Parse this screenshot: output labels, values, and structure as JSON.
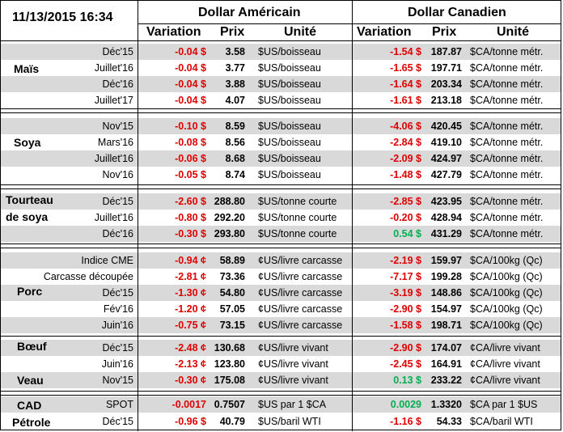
{
  "header": {
    "timestamp": "11/13/2015 16:34",
    "usd_title": "Dollar Américain",
    "cad_title": "Dollar Canadien",
    "col_variation": "Variation",
    "col_prix": "Prix",
    "col_unite": "Unité"
  },
  "groups": [
    {
      "label": "Maïs"
    },
    {
      "label": "Soya"
    },
    {
      "label": "Tourteau de soya"
    },
    {
      "label": "Porc"
    },
    {
      "label": "Bœuf"
    },
    {
      "label": "Veau"
    },
    {
      "label": "CAD"
    },
    {
      "label": "Pétrole"
    }
  ],
  "rows": [
    {
      "cat": "Déc'15",
      "uv": "-0.04 $",
      "up": "3.58",
      "uu": "$US/boisseau",
      "cv": "-1.54 $",
      "cp": "187.87",
      "cu": "$CA/tonne métr.",
      "cv_sign": "neg"
    },
    {
      "cat": "Juillet'16",
      "uv": "-0.04 $",
      "up": "3.77",
      "uu": "$US/boisseau",
      "cv": "-1.65 $",
      "cp": "197.71",
      "cu": "$CA/tonne métr.",
      "cv_sign": "neg"
    },
    {
      "cat": "Déc'16",
      "uv": "-0.04 $",
      "up": "3.88",
      "uu": "$US/boisseau",
      "cv": "-1.64 $",
      "cp": "203.34",
      "cu": "$CA/tonne métr.",
      "cv_sign": "neg"
    },
    {
      "cat": "Juillet'17",
      "uv": "-0.04 $",
      "up": "4.07",
      "uu": "$US/boisseau",
      "cv": "-1.61 $",
      "cp": "213.18",
      "cu": "$CA/tonne métr.",
      "cv_sign": "neg"
    },
    {
      "cat": "Nov'15",
      "uv": "-0.10 $",
      "up": "8.59",
      "uu": "$US/boisseau",
      "cv": "-4.06 $",
      "cp": "420.45",
      "cu": "$CA/tonne métr.",
      "cv_sign": "neg"
    },
    {
      "cat": "Mars'16",
      "uv": "-0.08 $",
      "up": "8.56",
      "uu": "$US/boisseau",
      "cv": "-2.84 $",
      "cp": "419.10",
      "cu": "$CA/tonne métr.",
      "cv_sign": "neg"
    },
    {
      "cat": "Juillet'16",
      "uv": "-0.06 $",
      "up": "8.68",
      "uu": "$US/boisseau",
      "cv": "-2.09 $",
      "cp": "424.97",
      "cu": "$CA/tonne métr.",
      "cv_sign": "neg"
    },
    {
      "cat": "Nov'16",
      "uv": "-0.05 $",
      "up": "8.74",
      "uu": "$US/boisseau",
      "cv": "-1.48 $",
      "cp": "427.79",
      "cu": "$CA/tonne métr.",
      "cv_sign": "neg"
    },
    {
      "cat": "Déc'15",
      "uv": "-2.60 $",
      "up": "288.80",
      "uu": "$US/tonne courte",
      "cv": "-2.85 $",
      "cp": "423.95",
      "cu": "$CA/tonne métr.",
      "cv_sign": "neg"
    },
    {
      "cat": "Juillet'16",
      "uv": "-0.80 $",
      "up": "292.20",
      "uu": "$US/tonne courte",
      "cv": "-0.20 $",
      "cp": "428.94",
      "cu": "$CA/tonne métr.",
      "cv_sign": "neg"
    },
    {
      "cat": "Déc'16",
      "uv": "-0.30 $",
      "up": "293.80",
      "uu": "$US/tonne courte",
      "cv": "0.54 $",
      "cp": "431.29",
      "cu": "$CA/tonne métr.",
      "cv_sign": "pos"
    },
    {
      "cat": "Indice CME",
      "uv": "-0.94 ¢",
      "up": "58.89",
      "uu": "¢US/livre carcasse",
      "cv": "-2.19 $",
      "cp": "159.97",
      "cu": "$CA/100kg (Qc)",
      "cv_sign": "neg"
    },
    {
      "cat": "Carcasse découpée",
      "uv": "-2.81 ¢",
      "up": "73.36",
      "uu": "¢US/livre carcasse",
      "cv": "-7.17 $",
      "cp": "199.28",
      "cu": "$CA/100kg (Qc)",
      "cv_sign": "neg"
    },
    {
      "cat": "Déc'15",
      "uv": "-1.30 ¢",
      "up": "54.80",
      "uu": "¢US/livre carcasse",
      "cv": "-3.19 $",
      "cp": "148.86",
      "cu": "$CA/100kg (Qc)",
      "cv_sign": "neg"
    },
    {
      "cat": "Fév'16",
      "uv": "-1.20 ¢",
      "up": "57.05",
      "uu": "¢US/livre carcasse",
      "cv": "-2.90 $",
      "cp": "154.97",
      "cu": "$CA/100kg (Qc)",
      "cv_sign": "neg"
    },
    {
      "cat": "Juin'16",
      "uv": "-0.75 ¢",
      "up": "73.15",
      "uu": "¢US/livre carcasse",
      "cv": "-1.58 $",
      "cp": "198.71",
      "cu": "$CA/100kg (Qc)",
      "cv_sign": "neg"
    },
    {
      "cat": "Déc'15",
      "uv": "-2.48 ¢",
      "up": "130.68",
      "uu": "¢US/livre vivant",
      "cv": "-2.90 $",
      "cp": "174.07",
      "cu": "¢CA/livre vivant",
      "cv_sign": "neg"
    },
    {
      "cat": "Juin'16",
      "uv": "-2.13 ¢",
      "up": "123.80",
      "uu": "¢US/livre vivant",
      "cv": "-2.45 $",
      "cp": "164.91",
      "cu": "¢CA/livre vivant",
      "cv_sign": "neg"
    },
    {
      "cat": "Nov'15",
      "uv": "-0.30 ¢",
      "up": "175.08",
      "uu": "¢US/livre vivant",
      "cv": "0.13 $",
      "cp": "233.22",
      "cu": "¢CA/livre vivant",
      "cv_sign": "pos"
    },
    {
      "cat": "SPOT",
      "uv": "-0.0017",
      "up": "0.7507",
      "uu": "$US par 1 $CA",
      "cv": "0.0029",
      "cp": "1.3320",
      "cu": "$CA par 1 $US",
      "cv_sign": "pos"
    },
    {
      "cat": "Déc'15",
      "uv": "-0.96 $",
      "up": "40.79",
      "uu": "$US/baril WTI",
      "cv": "-1.16 $",
      "cp": "54.33",
      "cu": "$CA/baril WTI",
      "cv_sign": "neg"
    }
  ]
}
